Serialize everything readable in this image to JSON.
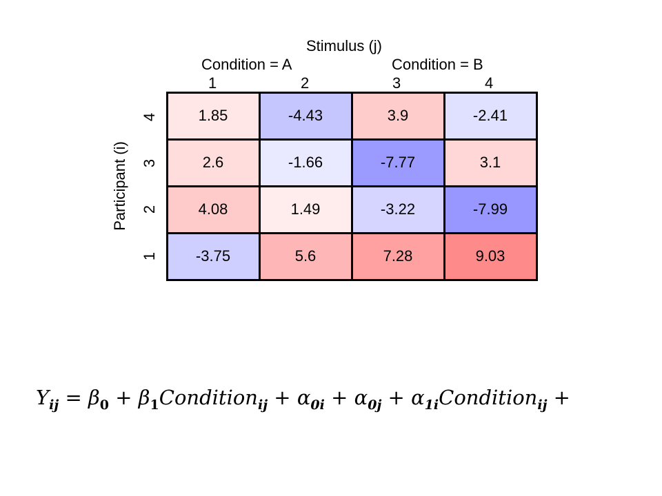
{
  "chart_data": {
    "type": "heatmap",
    "title": "Stimulus (j)",
    "ylabel": "Participant (i)",
    "condition_labels": [
      "Condition = A",
      "Condition = B"
    ],
    "columns": [
      "1",
      "2",
      "3",
      "4"
    ],
    "rows": [
      "4",
      "3",
      "2",
      "1"
    ],
    "values": [
      [
        1.85,
        -4.43,
        3.9,
        -2.41
      ],
      [
        2.6,
        -1.66,
        -7.77,
        3.1
      ],
      [
        4.08,
        1.49,
        -3.22,
        -7.99
      ],
      [
        -3.75,
        5.6,
        7.28,
        9.03
      ]
    ],
    "display": [
      [
        "1.85",
        "-4.43",
        "3.9",
        "-2.41"
      ],
      [
        "2.6",
        "-1.66",
        "-7.77",
        "3.1"
      ],
      [
        "4.08",
        "1.49",
        "-3.22",
        "-7.99"
      ],
      [
        "-3.75",
        "5.6",
        "7.28",
        "9.03"
      ]
    ],
    "colors": {
      "positive": "#ff8a8a",
      "negative": "#8a8aff",
      "zero": "#ffffff"
    }
  },
  "equation": {
    "Y": "Y",
    "Y_sub": "ij",
    "eq": "=",
    "beta0": "β",
    "beta0_sub": "0",
    "plus1": "+",
    "beta1": "β",
    "beta1_sub": "1",
    "cond1": "Condition",
    "cond1_sub": "ij",
    "plus2": "+",
    "alpha0i": "α",
    "alpha0i_sub": "0i",
    "plus3": "+",
    "alpha0j": "α",
    "alpha0j_sub": "0j",
    "plus4": "+",
    "alpha1i": "α",
    "alpha1i_sub": "1i",
    "cond2": "Condition",
    "cond2_sub": "ij",
    "plus5": "+"
  }
}
